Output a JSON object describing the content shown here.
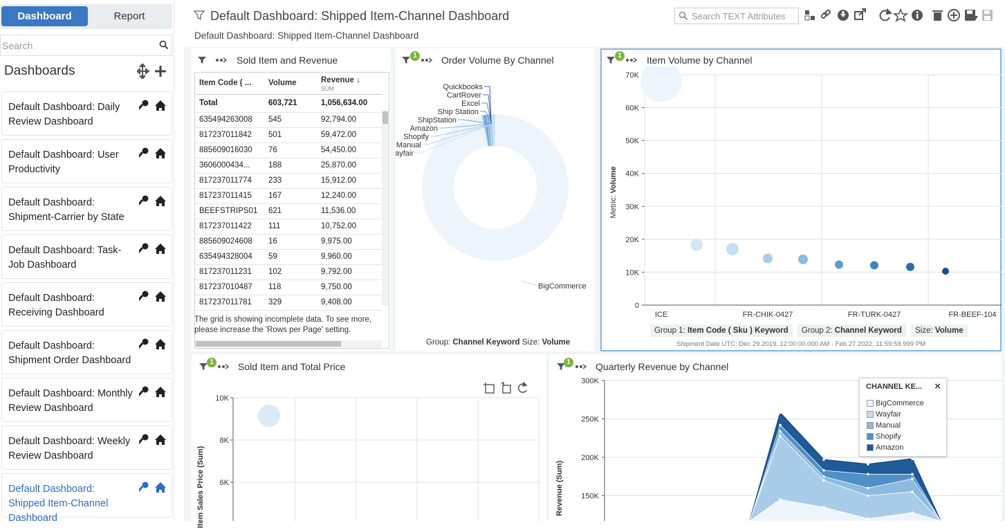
{
  "tabs": {
    "dashboard": "Dashboard",
    "report": "Report"
  },
  "sidebar": {
    "search_placeholder": "Search",
    "heading": "Dashboards",
    "items": [
      {
        "label": "Default Dashboard: Daily Review Dashboard"
      },
      {
        "label": "Default Dashboard: User Productivity"
      },
      {
        "label": "Default Dashboard: Shipment-Carrier by State"
      },
      {
        "label": "Default Dashboard: Task-Job Dashboard"
      },
      {
        "label": "Default Dashboard: Receiving Dashboard"
      },
      {
        "label": "Default Dashboard: Shipment Order Dashboard"
      },
      {
        "label": "Default Dashboard: Monthly Review Dashboard"
      },
      {
        "label": "Default Dashboard: Weekly Review Dashboard"
      },
      {
        "label": "Default Dashboard: Shipped Item-Channel Dashboard"
      }
    ]
  },
  "header": {
    "title": "Default Dashboard: Shipped Item-Channel Dashboard",
    "subtitle": "Default Dashboard: Shipped Item-Channel Dashboard",
    "search_placeholder": "Search TEXT Attributes"
  },
  "panels": {
    "sold_item_revenue": {
      "title": "Sold Item and Revenue",
      "columns": [
        "Item Code ( ...",
        "Volume",
        "Revenue",
        "SUM"
      ],
      "total": {
        "code": "Total",
        "volume": "603,721",
        "revenue": "1,056,634.00"
      },
      "rows": [
        {
          "code": "635494263008",
          "volume": "545",
          "revenue": "92,794.00"
        },
        {
          "code": "817237011842",
          "volume": "501",
          "revenue": "59,472.00"
        },
        {
          "code": "885609016030",
          "volume": "76",
          "revenue": "54,450.00"
        },
        {
          "code": "3606000434...",
          "volume": "188",
          "revenue": "25,870.00"
        },
        {
          "code": "817237011774",
          "volume": "233",
          "revenue": "15,912.00"
        },
        {
          "code": "817237011415",
          "volume": "167",
          "revenue": "12,240.00"
        },
        {
          "code": "BEEFSTRIPS01",
          "volume": "621",
          "revenue": "11,536.00"
        },
        {
          "code": "817237011422",
          "volume": "111",
          "revenue": "10,752.00"
        },
        {
          "code": "885609024608",
          "volume": "16",
          "revenue": "9,975.00"
        },
        {
          "code": "635494328004",
          "volume": "59",
          "revenue": "9,960.00"
        },
        {
          "code": "817237011231",
          "volume": "102",
          "revenue": "9,792.00"
        },
        {
          "code": "817237010487",
          "volume": "118",
          "revenue": "9,750.00"
        },
        {
          "code": "817237011781",
          "volume": "329",
          "revenue": "9,408.00"
        }
      ],
      "note": "The grid is showing incomplete data. To see more, please increase the 'Rows per Page' setting."
    },
    "order_volume": {
      "title": "Order Volume By Channel",
      "badge": "1",
      "footer_group_label": "Group:",
      "footer_group": "Channel Keyword",
      "footer_size_label": "Size:",
      "footer_size": "Volume"
    },
    "item_volume": {
      "title": "Item Volume by Channel",
      "badge": "1",
      "ylabel_prefix": "Metric:",
      "ylabel": "Volume",
      "group1_label": "Group 1:",
      "group1": "Item Code ( Sku ) Keyword",
      "group2_label": "Group 2:",
      "group2": "Channel Keyword",
      "size_label": "Size:",
      "size": "Volume",
      "date_range": "Shipment Date UTC: Dec 29 2019, 12:00:00.000 AM - Feb 27 2022, 11:59:59.999 PM"
    },
    "sold_item_price": {
      "title": "Sold Item and Total Price",
      "badge": "1",
      "ylabel": "Item Sales Price (Sum)"
    },
    "quarterly_revenue": {
      "title": "Quarterly Revenue by Channel",
      "badge": "1",
      "ylabel": "Revenue (Sum)",
      "legend_title": "CHANNEL KE...",
      "legend_close": "×"
    }
  },
  "chart_data": [
    {
      "type": "pie",
      "title": "Order Volume By Channel",
      "donut": true,
      "labels": [
        "Quickbooks",
        "CartRover",
        "Excel",
        "Ship Station",
        "ShipStation",
        "Amazon",
        "Shopify",
        "Manual",
        "Wayfair",
        "BigCommerce"
      ],
      "values": [
        0.05,
        0.05,
        0.1,
        0.1,
        0.2,
        0.6,
        0.6,
        0.6,
        0.7,
        97.0
      ],
      "colors": [
        "#08306b",
        "#1b4f91",
        "#2f6fae",
        "#3a7dba",
        "#4f90c8",
        "#6aa3d2",
        "#8dbadf",
        "#a9cce8",
        "#c6ddf1",
        "#edf4fb"
      ]
    },
    {
      "type": "scatter",
      "title": "Item Volume by Channel",
      "xlabel": "",
      "ylabel": "Volume",
      "ylim": [
        0,
        70000
      ],
      "yticks": [
        "0",
        "10K",
        "20K",
        "30K",
        "40K",
        "50K",
        "60K",
        "70K"
      ],
      "xticks": [
        "ICE",
        "FR-CHIK-0427",
        "FR-TURK-0427",
        "FR-BEEF-104"
      ],
      "points": [
        {
          "x": 0,
          "y": 68000,
          "size": 30,
          "color": "#edf4fb"
        },
        {
          "x": 1,
          "y": 18300,
          "size": 9,
          "color": "#d4e5f4"
        },
        {
          "x": 2,
          "y": 17000,
          "size": 9,
          "color": "#c6ddf1"
        },
        {
          "x": 3,
          "y": 14200,
          "size": 7,
          "color": "#a9cce8"
        },
        {
          "x": 4,
          "y": 13900,
          "size": 7,
          "color": "#8dbadf"
        },
        {
          "x": 5,
          "y": 12300,
          "size": 6,
          "color": "#5a9bd0"
        },
        {
          "x": 6,
          "y": 12100,
          "size": 6,
          "color": "#3f84c2"
        },
        {
          "x": 7,
          "y": 11600,
          "size": 6,
          "color": "#2a6cae"
        },
        {
          "x": 8,
          "y": 10300,
          "size": 5,
          "color": "#1a4e8a"
        }
      ]
    },
    {
      "type": "scatter",
      "title": "Sold Item and Total Price",
      "ylabel": "Item Sales Price (Sum)",
      "ylim": [
        4000,
        10000
      ],
      "yticks": [
        "6K",
        "8K",
        "10K"
      ],
      "points": [
        {
          "x": 0,
          "y": 9150,
          "size": 16,
          "color": "#dce9f6"
        }
      ]
    },
    {
      "type": "area",
      "title": "Quarterly Revenue by Channel",
      "ylabel": "Revenue (Sum)",
      "ylim": [
        100000,
        300000
      ],
      "yticks": [
        "150K",
        "200K",
        "250K",
        "300K"
      ],
      "series": [
        {
          "name": "BigCommerce",
          "color": "#edf4fb"
        },
        {
          "name": "Wayfair",
          "color": "#c6ddf1"
        },
        {
          "name": "Manual",
          "color": "#8dbadf"
        },
        {
          "name": "Shopify",
          "color": "#4f90c8"
        },
        {
          "name": "Amazon",
          "color": "#1f5a99"
        }
      ],
      "stack_totals": [
        {
          "x": 0,
          "y": 0
        },
        {
          "x": 1,
          "y": 258000
        },
        {
          "x": 2,
          "y": 197000
        },
        {
          "x": 3,
          "y": 191000
        },
        {
          "x": 4,
          "y": 198000
        },
        {
          "x": 5,
          "y": 0
        }
      ]
    }
  ]
}
